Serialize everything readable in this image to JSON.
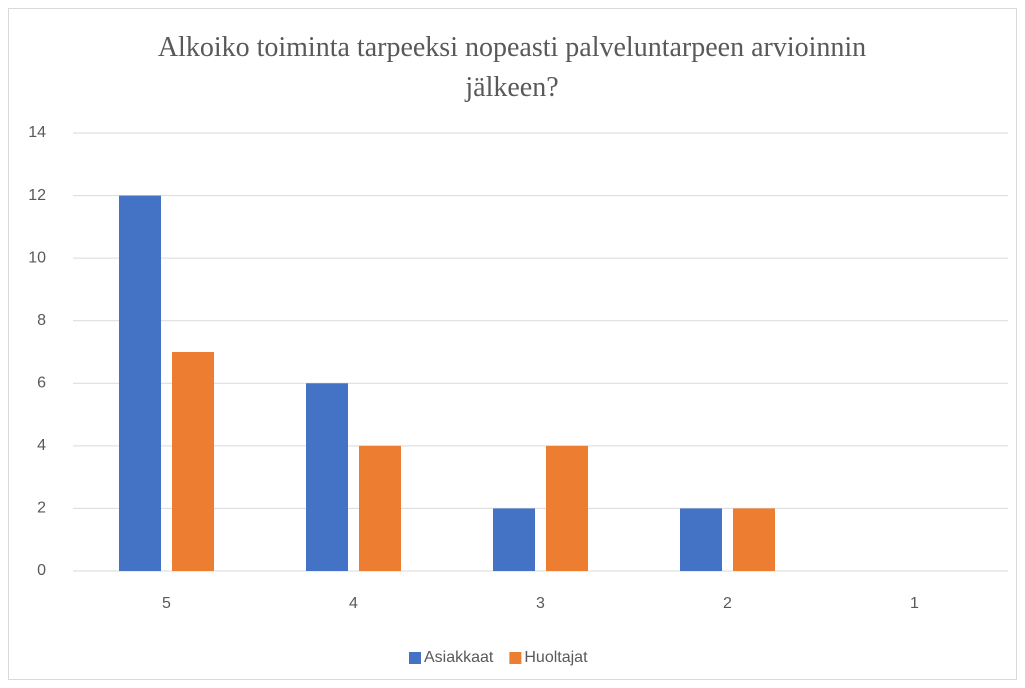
{
  "chart_data": {
    "type": "bar",
    "title": "Alkoiko toiminta tarpeeksi nopeasti palveluntarpeen arvioinnin jälkeen?",
    "categories": [
      "5",
      "4",
      "3",
      "2",
      "1"
    ],
    "series": [
      {
        "name": "Asiakkaat",
        "color": "#4472c4",
        "values": [
          12,
          6,
          2,
          2,
          0
        ]
      },
      {
        "name": "Huoltajat",
        "color": "#ed7d31",
        "values": [
          7,
          4,
          4,
          2,
          0
        ]
      }
    ],
    "ylim": [
      0,
      14
    ],
    "yticks": [
      0,
      2,
      4,
      6,
      8,
      10,
      12,
      14
    ],
    "grid": true,
    "legend": "bottom"
  }
}
